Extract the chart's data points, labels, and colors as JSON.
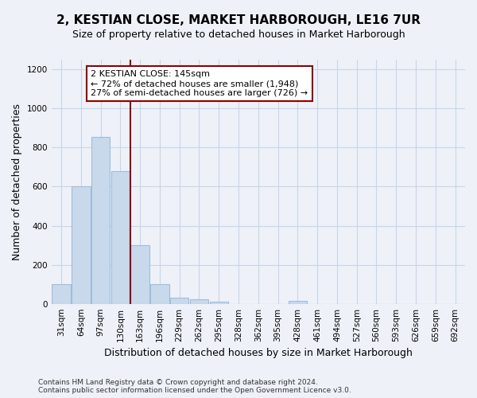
{
  "title": "2, KESTIAN CLOSE, MARKET HARBOROUGH, LE16 7UR",
  "subtitle": "Size of property relative to detached houses in Market Harborough",
  "xlabel": "Distribution of detached houses by size in Market Harborough",
  "ylabel": "Number of detached properties",
  "bar_color": "#c8d9ec",
  "bar_edgecolor": "#a0bcda",
  "vline_color": "#8b0000",
  "categories": [
    "31sqm",
    "64sqm",
    "97sqm",
    "130sqm",
    "163sqm",
    "196sqm",
    "229sqm",
    "262sqm",
    "295sqm",
    "328sqm",
    "362sqm",
    "395sqm",
    "428sqm",
    "461sqm",
    "494sqm",
    "527sqm",
    "560sqm",
    "593sqm",
    "626sqm",
    "659sqm",
    "692sqm"
  ],
  "values": [
    100,
    600,
    855,
    680,
    300,
    100,
    30,
    25,
    10,
    0,
    0,
    0,
    15,
    0,
    0,
    0,
    0,
    0,
    0,
    0,
    0
  ],
  "ylim": [
    0,
    1250
  ],
  "yticks": [
    0,
    200,
    400,
    600,
    800,
    1000,
    1200
  ],
  "vline_bar_index": 3,
  "annotation_text": "2 KESTIAN CLOSE: 145sqm\n← 72% of detached houses are smaller (1,948)\n27% of semi-detached houses are larger (726) →",
  "annotation_box_facecolor": "#ffffff",
  "annotation_box_edgecolor": "#8b0000",
  "footer_line1": "Contains HM Land Registry data © Crown copyright and database right 2024.",
  "footer_line2": "Contains public sector information licensed under the Open Government Licence v3.0.",
  "grid_color": "#c8d4e8",
  "background_color": "#eef2f8",
  "title_fontsize": 11,
  "subtitle_fontsize": 9,
  "tick_fontsize": 7.5,
  "ylabel_fontsize": 9,
  "xlabel_fontsize": 9,
  "annotation_fontsize": 8,
  "footer_fontsize": 6.5
}
